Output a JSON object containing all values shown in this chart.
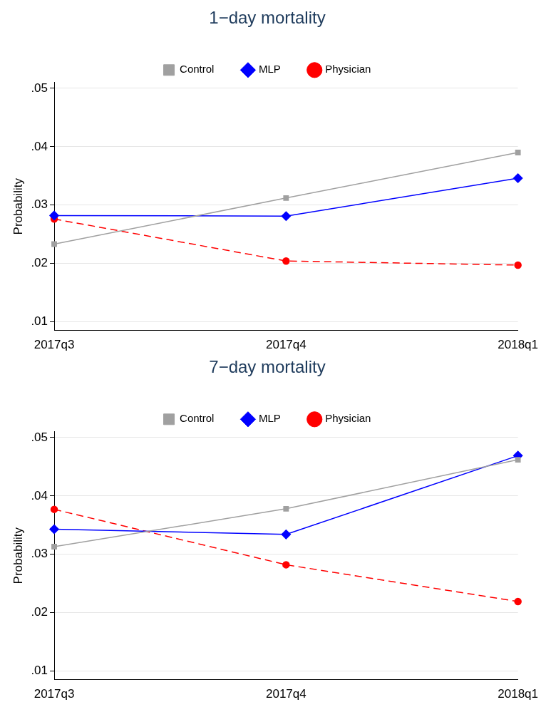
{
  "chart_data": [
    {
      "type": "line",
      "title": "1−day mortality",
      "ylabel": "Probability",
      "categories": [
        "2017q3",
        "2017q4",
        "2018q1"
      ],
      "ylim": [
        0.0085,
        0.051
      ],
      "yticks": [
        {
          "value": 0.01,
          "label": ".01"
        },
        {
          "value": 0.02,
          "label": ".02"
        },
        {
          "value": 0.03,
          "label": ".03"
        },
        {
          "value": 0.04,
          "label": ".04"
        },
        {
          "value": 0.05,
          "label": ".05"
        }
      ],
      "grid": "y",
      "legend": "top",
      "series": [
        {
          "name": "Control",
          "color": "#a0a0a0",
          "marker": "square",
          "line_style": "solid",
          "values": [
            0.0233,
            0.0312,
            0.039
          ]
        },
        {
          "name": "MLP",
          "color": "#0000ff",
          "marker": "diamond",
          "line_style": "solid",
          "values": [
            0.0282,
            0.0281,
            0.0346
          ]
        },
        {
          "name": "Physician",
          "color": "#ff0000",
          "marker": "circle",
          "line_style": "dashed",
          "values": [
            0.0276,
            0.0204,
            0.0197
          ]
        }
      ]
    },
    {
      "type": "line",
      "title": "7−day mortality",
      "ylabel": "Probability",
      "categories": [
        "2017q3",
        "2017q4",
        "2018q1"
      ],
      "ylim": [
        0.0085,
        0.051
      ],
      "yticks": [
        {
          "value": 0.01,
          "label": ".01"
        },
        {
          "value": 0.02,
          "label": ".02"
        },
        {
          "value": 0.03,
          "label": ".03"
        },
        {
          "value": 0.04,
          "label": ".04"
        },
        {
          "value": 0.05,
          "label": ".05"
        }
      ],
      "grid": "y",
      "legend": "top",
      "series": [
        {
          "name": "Control",
          "color": "#a0a0a0",
          "marker": "square",
          "line_style": "solid",
          "values": [
            0.0313,
            0.0378,
            0.0462
          ]
        },
        {
          "name": "MLP",
          "color": "#0000ff",
          "marker": "diamond",
          "line_style": "solid",
          "values": [
            0.0343,
            0.0334,
            0.0469
          ]
        },
        {
          "name": "Physician",
          "color": "#ff0000",
          "marker": "circle",
          "line_style": "dashed",
          "values": [
            0.0377,
            0.0282,
            0.0219
          ]
        }
      ]
    }
  ]
}
